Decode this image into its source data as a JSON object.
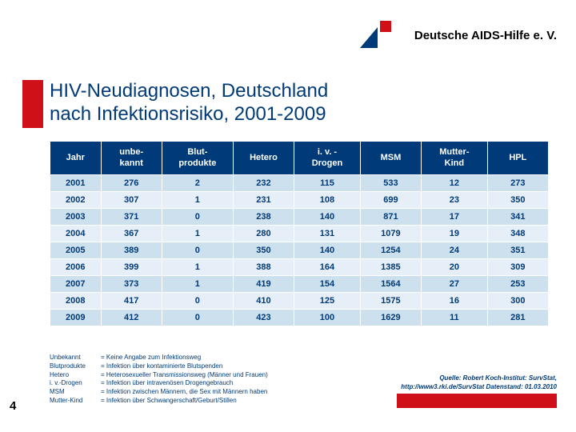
{
  "org_name": "Deutsche AIDS-Hilfe e. V.",
  "title_line1": "HIV-Neudiagnosen, Deutschland",
  "title_line2": "nach Infektionsrisiko, 2001-2009",
  "page_number": "4",
  "colors": {
    "brand_blue": "#003a78",
    "brand_red": "#d01018",
    "row_a": "#cce0ee",
    "row_b": "#e6eff7"
  },
  "table": {
    "columns": [
      "Jahr",
      "unbe-\nkannt",
      "Blut-\nprodukte",
      "Hetero",
      "i. v. -\nDrogen",
      "MSM",
      "Mutter-\nKind",
      "HPL"
    ],
    "col_widths": [
      "10%",
      "12%",
      "14%",
      "12%",
      "13%",
      "12%",
      "13%",
      "12%"
    ],
    "rows": [
      [
        "2001",
        "276",
        "2",
        "232",
        "115",
        "533",
        "12",
        "273"
      ],
      [
        "2002",
        "307",
        "1",
        "231",
        "108",
        "699",
        "23",
        "350"
      ],
      [
        "2003",
        "371",
        "0",
        "238",
        "140",
        "871",
        "17",
        "341"
      ],
      [
        "2004",
        "367",
        "1",
        "280",
        "131",
        "1079",
        "19",
        "348"
      ],
      [
        "2005",
        "389",
        "0",
        "350",
        "140",
        "1254",
        "24",
        "351"
      ],
      [
        "2006",
        "399",
        "1",
        "388",
        "164",
        "1385",
        "20",
        "309"
      ],
      [
        "2007",
        "373",
        "1",
        "419",
        "154",
        "1564",
        "27",
        "253"
      ],
      [
        "2008",
        "417",
        "0",
        "410",
        "125",
        "1575",
        "16",
        "300"
      ],
      [
        "2009",
        "412",
        "0",
        "423",
        "100",
        "1629",
        "11",
        "281"
      ]
    ]
  },
  "footnotes": [
    {
      "key": "Unbekannt",
      "val": "= Keine Angabe zum Infektionsweg"
    },
    {
      "key": "Blutprodukte",
      "val": "= Infektion über kontaminierte Blutspenden"
    },
    {
      "key": "Hetero",
      "val": "= Heterosexueller Transmissionsweg (Männer und Frauen)"
    },
    {
      "key": "i. v.-Drogen",
      "val": "= Infektion über intravenösen Drogengebrauch"
    },
    {
      "key": "MSM",
      "val": "= Infektion zwischen Männern, die Sex mit Männern haben"
    },
    {
      "key": "Mutter-Kind",
      "val": "= Infektion über Schwangerschaft/Geburt/Stillen"
    }
  ],
  "source": {
    "line1": "Quelle: Robert Koch-Institut: SurvStat,",
    "line2": "http://www3.rki.de/SurvStat Datenstand: 01.03.2010"
  }
}
